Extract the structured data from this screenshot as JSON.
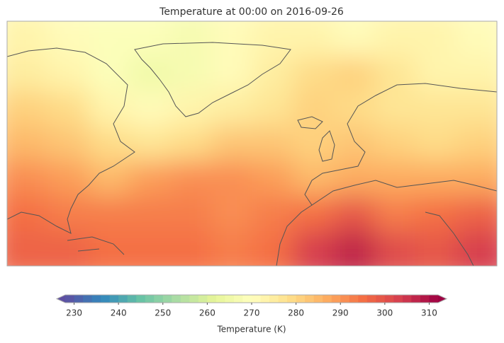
{
  "chart_data": {
    "type": "map",
    "title": "Temperature at 00:00 on 2016-09-26",
    "colorbar": {
      "label": "Temperature (K)",
      "lim": [
        228,
        312
      ],
      "levels": 42,
      "extend": "both",
      "ticks": [
        230,
        240,
        250,
        260,
        270,
        280,
        290,
        300,
        310
      ]
    },
    "colormap": [
      "#5e4fa2",
      "#3288bd",
      "#66c2a5",
      "#abdda4",
      "#e6f598",
      "#ffffbf",
      "#fee08b",
      "#fdae61",
      "#f46d43",
      "#d53e4f",
      "#9e0142"
    ],
    "field": [
      [
        272,
        270,
        268,
        268,
        267,
        270,
        272,
        273,
        270,
        272,
        273,
        270
      ],
      [
        275,
        273,
        268,
        264,
        266,
        270,
        274,
        278,
        280,
        276,
        272,
        272
      ],
      [
        280,
        278,
        273,
        270,
        272,
        274,
        276,
        280,
        278,
        277,
        276,
        276
      ],
      [
        285,
        282,
        278,
        276,
        278,
        283,
        283,
        280,
        283,
        280,
        279,
        280
      ],
      [
        290,
        288,
        285,
        288,
        290,
        290,
        288,
        284,
        286,
        287,
        287,
        286
      ],
      [
        295,
        293,
        292,
        292,
        292,
        291,
        292,
        294,
        298,
        293,
        294,
        296
      ],
      [
        297,
        296,
        295,
        294,
        294,
        293,
        295,
        302,
        306,
        300,
        298,
        302
      ]
    ]
  }
}
